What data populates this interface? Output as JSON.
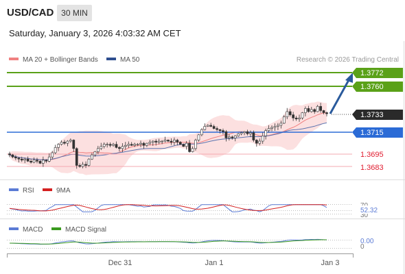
{
  "header": {
    "symbol": "USD/CAD",
    "interval": "30 MIN",
    "datetime": "Saturday, January 3, 2026 4:03:32 AM CET"
  },
  "chart_data": {
    "type": "candlestick",
    "legend": [
      {
        "name": "MA 20 + Bollinger Bands",
        "color": "#f08080"
      },
      {
        "name": "MA 50",
        "color": "#2e4e8f"
      }
    ],
    "credit": "Research © 2026 Trading Central",
    "levels": [
      {
        "value": "1.3772",
        "color": "#5aa118",
        "style": "filled"
      },
      {
        "value": "1.3760",
        "color": "#5aa118",
        "style": "filled"
      },
      {
        "value": "1.3733",
        "color": "#222222",
        "style": "current"
      },
      {
        "value": "1.3715",
        "color": "#2b6bd6",
        "style": "filled"
      },
      {
        "value": "1.3695",
        "color": "#e01b2e",
        "style": "text"
      },
      {
        "value": "1.3683",
        "color": "#e01b2e",
        "style": "text"
      }
    ],
    "price_path": [
      1.3694,
      1.3692,
      1.3691,
      1.369,
      1.3689,
      1.369,
      1.3688,
      1.3687,
      1.3689,
      1.3688,
      1.3686,
      1.3689,
      1.3688,
      1.3692,
      1.3696,
      1.3701,
      1.3704,
      1.3706,
      1.3705,
      1.3707,
      1.3708,
      1.37,
      1.3684,
      1.3683,
      1.3685,
      1.3684,
      1.369,
      1.3694,
      1.3697,
      1.37,
      1.3702,
      1.3704,
      1.3704,
      1.3703,
      1.3704,
      1.3701,
      1.37,
      1.3702,
      1.3703,
      1.3704,
      1.3703,
      1.3704,
      1.3704,
      1.3705,
      1.3703,
      1.3705,
      1.3706,
      1.3707,
      1.3706,
      1.3707,
      1.3707,
      1.3708,
      1.3707,
      1.3706,
      1.3708,
      1.3706,
      1.3704,
      1.3702,
      1.3705,
      1.3697,
      1.37,
      1.3708,
      1.3713,
      1.3718,
      1.3721,
      1.3722,
      1.3721,
      1.3719,
      1.3718,
      1.3717,
      1.3716,
      1.371,
      1.3711,
      1.371,
      1.3712,
      1.3714,
      1.3715,
      1.3716,
      1.3714,
      1.3715,
      1.3708,
      1.3705,
      1.3707,
      1.3712,
      1.3717,
      1.3719,
      1.372,
      1.3721,
      1.3722,
      1.3724,
      1.373,
      1.3735,
      1.3732,
      1.3729,
      1.3728,
      1.3729,
      1.3734,
      1.3738,
      1.3735,
      1.3737,
      1.3735,
      1.374,
      1.3736,
      1.3734,
      1.3733
    ],
    "x_ticks": [
      "Dec 31",
      "Jan 1",
      "Jan 3"
    ],
    "rsi": {
      "legend": [
        {
          "name": "RSI",
          "color": "#5b7bd5"
        },
        {
          "name": "9MA",
          "color": "#d42020"
        }
      ],
      "levels": [
        "70",
        "52.32",
        "30"
      ]
    },
    "macd": {
      "legend": [
        {
          "name": "MACD",
          "color": "#5b7bd5"
        },
        {
          "name": "MACD Signal",
          "color": "#3a9a1e"
        }
      ],
      "levels": [
        "0.00",
        "0"
      ]
    }
  }
}
